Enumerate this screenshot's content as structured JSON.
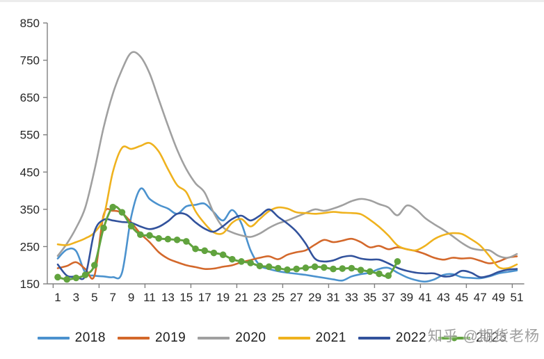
{
  "watermark": "知乎 @期货老杨",
  "chart_data": {
    "type": "line",
    "title": "",
    "xlabel": "",
    "ylabel": "",
    "grid": false,
    "legend_position": "bottom",
    "ylim": [
      150,
      850
    ],
    "ytick_step": 100,
    "y_tick_labels": [
      "150",
      "250",
      "350",
      "450",
      "550",
      "650",
      "750",
      "850"
    ],
    "x_tick_labels": [
      "1",
      "3",
      "5",
      "7",
      "9",
      "11",
      "13",
      "15",
      "17",
      "19",
      "21",
      "23",
      "25",
      "27",
      "29",
      "31",
      "33",
      "35",
      "37",
      "39",
      "41",
      "43",
      "45",
      "47",
      "49",
      "51"
    ],
    "categories": [
      1,
      2,
      3,
      4,
      5,
      6,
      7,
      8,
      9,
      10,
      11,
      12,
      13,
      14,
      15,
      16,
      17,
      18,
      19,
      20,
      21,
      22,
      23,
      24,
      25,
      26,
      27,
      28,
      29,
      30,
      31,
      32,
      33,
      34,
      35,
      36,
      37,
      38,
      39,
      40,
      41,
      42,
      43,
      44,
      45,
      46,
      47,
      48,
      49,
      50,
      51
    ],
    "series": [
      {
        "name": "2018",
        "color": "#4B92CE",
        "marker": "none",
        "values": [
          218,
          242,
          238,
          180,
          172,
          170,
          168,
          180,
          330,
          405,
          378,
          362,
          352,
          338,
          358,
          362,
          365,
          342,
          320,
          348,
          312,
          240,
          200,
          190,
          184,
          180,
          177,
          174,
          170,
          166,
          162,
          159,
          170,
          176,
          180,
          190,
          193,
          180,
          168,
          160,
          156,
          162,
          174,
          176,
          168,
          166,
          165,
          170,
          178,
          182,
          186
        ]
      },
      {
        "name": "2019",
        "color": "#D3682B",
        "marker": "none",
        "values": [
          192,
          198,
          208,
          190,
          172,
          335,
          346,
          340,
          315,
          285,
          262,
          235,
          218,
          208,
          200,
          195,
          190,
          191,
          196,
          200,
          208,
          214,
          220,
          224,
          216,
          228,
          235,
          240,
          255,
          268,
          262,
          266,
          271,
          262,
          248,
          252,
          243,
          248,
          243,
          238,
          230,
          220,
          215,
          220,
          218,
          219,
          212,
          205,
          210,
          220,
          224
        ]
      },
      {
        "name": "2020",
        "color": "#A0A0A0",
        "marker": "none",
        "values": [
          225,
          258,
          300,
          355,
          455,
          570,
          660,
          725,
          770,
          760,
          715,
          645,
          575,
          510,
          458,
          420,
          395,
          340,
          302,
          288,
          280,
          276,
          285,
          300,
          312,
          320,
          330,
          340,
          350,
          346,
          352,
          361,
          372,
          378,
          374,
          364,
          355,
          334,
          360,
          350,
          327,
          310,
          295,
          278,
          260,
          246,
          241,
          240,
          225,
          220,
          230
        ]
      },
      {
        "name": "2021",
        "color": "#EFB21E",
        "marker": "none",
        "values": [
          256,
          254,
          262,
          272,
          288,
          330,
          450,
          515,
          512,
          520,
          528,
          505,
          458,
          415,
          396,
          345,
          312,
          288,
          286,
          314,
          324,
          304,
          324,
          345,
          355,
          352,
          342,
          340,
          338,
          340,
          343,
          341,
          340,
          337,
          322,
          303,
          280,
          253,
          243,
          240,
          252,
          270,
          281,
          286,
          284,
          270,
          253,
          225,
          195,
          192,
          202
        ]
      },
      {
        "name": "2022",
        "color": "#32529C",
        "marker": "none",
        "values": [
          202,
          172,
          170,
          172,
          290,
          322,
          320,
          316,
          314,
          304,
          297,
          303,
          318,
          338,
          336,
          315,
          298,
          290,
          305,
          324,
          333,
          320,
          333,
          350,
          330,
          312,
          290,
          258,
          218,
          210,
          213,
          222,
          225,
          218,
          215,
          215,
          205,
          193,
          185,
          180,
          178,
          178,
          170,
          172,
          185,
          180,
          168,
          172,
          182,
          188,
          190
        ]
      },
      {
        "name": "2023",
        "color": "#61A33E",
        "marker": "circle",
        "values": [
          168,
          162,
          166,
          174,
          200,
          300,
          356,
          342,
          305,
          282,
          280,
          272,
          270,
          268,
          264,
          244,
          239,
          233,
          228,
          216,
          210,
          206,
          198,
          196,
          192,
          188,
          190,
          193,
          196,
          194,
          190,
          191,
          192,
          187,
          183,
          177,
          172,
          210
        ]
      }
    ]
  }
}
